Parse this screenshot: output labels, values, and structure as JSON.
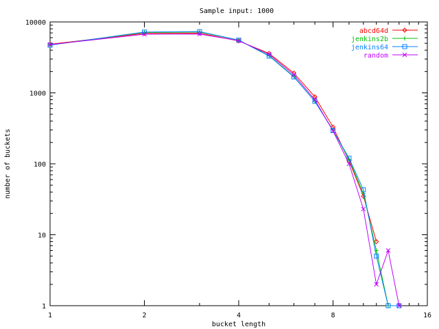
{
  "chart_data": {
    "type": "line",
    "title": "Sample input: 1000",
    "xlabel": "bucket length",
    "ylabel": "number of buckets",
    "x_scale": "log2",
    "y_scale": "log10",
    "xlim": [
      1,
      16
    ],
    "ylim": [
      1,
      10000
    ],
    "x_ticks": [
      {
        "value": 1,
        "label": "1"
      },
      {
        "value": 2,
        "label": "2"
      },
      {
        "value": 4,
        "label": "4"
      },
      {
        "value": 8,
        "label": "8"
      },
      {
        "value": 16,
        "label": "16"
      }
    ],
    "y_ticks": [
      {
        "value": 1,
        "label": "1"
      },
      {
        "value": 10,
        "label": "10"
      },
      {
        "value": 100,
        "label": "100"
      },
      {
        "value": 1000,
        "label": "1000"
      },
      {
        "value": 10000,
        "label": "10000"
      }
    ],
    "grid": false,
    "legend_position": "top-right",
    "series": [
      {
        "name": "abcd64d",
        "color": "#ff0000",
        "marker": "diamond",
        "x": [
          1,
          2,
          3,
          4,
          5,
          6,
          7,
          8,
          9,
          10,
          11
        ],
        "y": [
          4850,
          6900,
          6950,
          5400,
          3600,
          1900,
          880,
          330,
          110,
          35,
          8
        ]
      },
      {
        "name": "jenkins2b",
        "color": "#00c000",
        "marker": "plus",
        "x": [
          1,
          2,
          3,
          4,
          5,
          6,
          7,
          8,
          9,
          10,
          11,
          12
        ],
        "y": [
          4750,
          7100,
          7200,
          5550,
          3350,
          1700,
          760,
          300,
          115,
          38,
          6,
          1
        ]
      },
      {
        "name": "jenkins64",
        "color": "#0080ff",
        "marker": "square",
        "x": [
          1,
          2,
          3,
          4,
          5,
          6,
          7,
          8,
          9,
          10,
          11,
          12,
          13
        ],
        "y": [
          4700,
          7200,
          7300,
          5550,
          3300,
          1680,
          760,
          295,
          120,
          43,
          5,
          1,
          1
        ]
      },
      {
        "name": "random",
        "color": "#c000ff",
        "marker": "cross",
        "x": [
          1,
          2,
          3,
          4,
          5,
          6,
          7,
          8,
          9,
          10,
          11,
          12,
          13
        ],
        "y": [
          4800,
          6700,
          6750,
          5450,
          3500,
          1800,
          800,
          290,
          100,
          23,
          2,
          6,
          1
        ]
      }
    ]
  }
}
